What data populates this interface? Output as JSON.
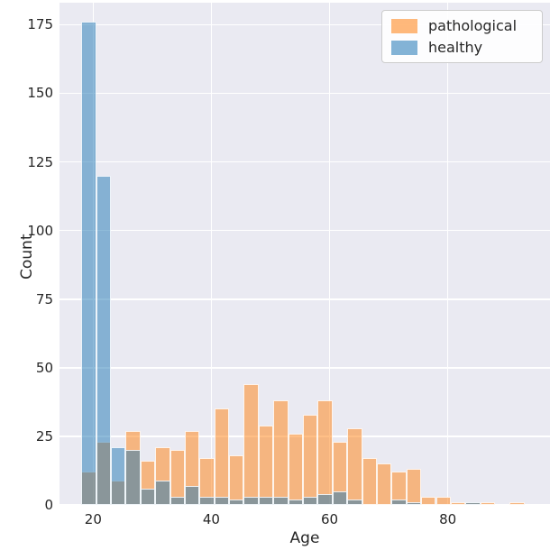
{
  "figure": {
    "background": "#ffffff",
    "plot_background": "#eaeaf2",
    "grid_color": "#ffffff",
    "text_color": "#262626"
  },
  "chart_data": {
    "type": "bar",
    "subtype": "overlaid-histogram",
    "title": "",
    "xlabel": "Age",
    "ylabel": "Count",
    "x_ticks": [
      20,
      40,
      60,
      80
    ],
    "y_ticks": [
      0,
      25,
      50,
      75,
      100,
      125,
      150,
      175
    ],
    "xlim": [
      14.3,
      97.3
    ],
    "ylim": [
      0,
      183
    ],
    "grid": true,
    "bins": {
      "start": 18,
      "width": 2.5,
      "count": 30
    },
    "series": [
      {
        "name": "pathological",
        "color": "#ff7f0e",
        "alpha": 0.5,
        "values": [
          12,
          23,
          9,
          27,
          16,
          21,
          20,
          27,
          17,
          35,
          18,
          44,
          29,
          38,
          26,
          33,
          38,
          23,
          28,
          17,
          15,
          12,
          13,
          3,
          3,
          1,
          1,
          1,
          0,
          1
        ]
      },
      {
        "name": "healthy",
        "color": "#1f77b4",
        "alpha": 0.5,
        "values": [
          176,
          120,
          21,
          20,
          6,
          9,
          3,
          7,
          3,
          3,
          2,
          3,
          3,
          3,
          2,
          3,
          4,
          5,
          2,
          0,
          0,
          2,
          1,
          0,
          0,
          0,
          1,
          0,
          0,
          0
        ]
      }
    ],
    "legend": {
      "position": "upper-right",
      "entries": [
        "pathological",
        "healthy"
      ]
    }
  }
}
